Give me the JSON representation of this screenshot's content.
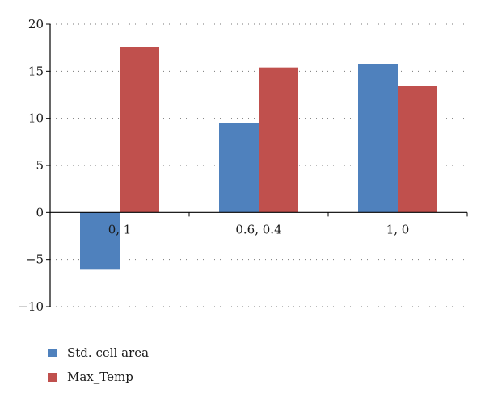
{
  "chart_data": {
    "type": "bar",
    "categories": [
      "0, 1",
      "0.6, 0.4",
      "1, 0"
    ],
    "series": [
      {
        "name": "Std. cell area",
        "color": "#4f81bd",
        "values": [
          -6.0,
          9.5,
          15.8
        ]
      },
      {
        "name": "Max_Temp",
        "color": "#c0504d",
        "values": [
          17.6,
          15.4,
          13.4
        ]
      }
    ],
    "yticks": [
      -10,
      -5,
      0,
      5,
      10,
      15,
      20
    ],
    "ytick_labels": [
      "−10",
      "−5",
      "0",
      "5",
      "10",
      "15",
      "20"
    ],
    "ylim": [
      -10,
      20
    ],
    "grid": true,
    "legend_position": "bottom-left",
    "title": "",
    "xlabel": "",
    "ylabel": ""
  }
}
